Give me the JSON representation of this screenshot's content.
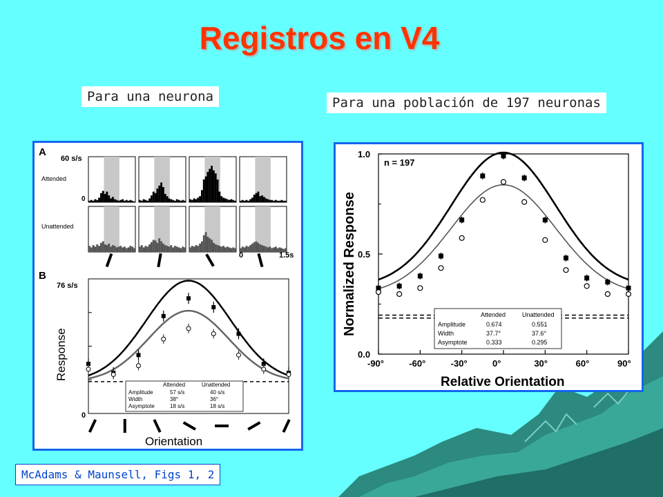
{
  "slide": {
    "title": "Registros en V4",
    "label_single": "Para una neurona",
    "label_population": "Para una población de 197 neuronas",
    "citation": "McAdams & Maunsell, Figs 1, 2",
    "colors": {
      "background": "#66ffff",
      "title": "#ff3300",
      "panel_border": "#1166ee",
      "citation_text": "#0044cc"
    }
  },
  "chart_data": [
    {
      "type": "histogram",
      "panel": "A",
      "rows": [
        "Attended",
        "Unattended"
      ],
      "y_tick_top": "60 s/s",
      "y_tick_bottom": "0",
      "x_tick_start": "0",
      "x_tick_end": "1.5s",
      "attended": [
        [
          2,
          3,
          2,
          4,
          3,
          6,
          12,
          15,
          11,
          14,
          9,
          5,
          7,
          4,
          3,
          2,
          3,
          4,
          2,
          3,
          2,
          3,
          2,
          1
        ],
        [
          3,
          2,
          4,
          3,
          2,
          5,
          9,
          14,
          12,
          18,
          22,
          26,
          20,
          11,
          8,
          5,
          4,
          3,
          2,
          4,
          3,
          2,
          3,
          2
        ],
        [
          4,
          3,
          5,
          4,
          6,
          8,
          16,
          30,
          34,
          40,
          44,
          48,
          42,
          38,
          30,
          14,
          8,
          6,
          5,
          4,
          3,
          4,
          3,
          2
        ],
        [
          2,
          3,
          2,
          3,
          2,
          4,
          6,
          10,
          12,
          14,
          8,
          9,
          7,
          5,
          4,
          3,
          3,
          2,
          3,
          2,
          2,
          3,
          2,
          2
        ]
      ],
      "unattended": [
        [
          8,
          6,
          9,
          7,
          10,
          8,
          12,
          14,
          10,
          9,
          11,
          7,
          9,
          8,
          6,
          7,
          8,
          6,
          7,
          5,
          6,
          8,
          7,
          5
        ],
        [
          7,
          9,
          6,
          8,
          7,
          10,
          13,
          16,
          15,
          12,
          18,
          14,
          11,
          9,
          8,
          7,
          9,
          6,
          8,
          7,
          6,
          5,
          7,
          6
        ],
        [
          6,
          8,
          7,
          9,
          8,
          11,
          14,
          22,
          26,
          20,
          18,
          16,
          12,
          10,
          9,
          8,
          7,
          8,
          6,
          7,
          6,
          5,
          6,
          5
        ],
        [
          5,
          7,
          6,
          8,
          7,
          9,
          11,
          13,
          14,
          12,
          10,
          9,
          8,
          7,
          6,
          7,
          5,
          6,
          7,
          5,
          6,
          5,
          4,
          5
        ]
      ]
    },
    {
      "type": "line",
      "panel": "B",
      "ylabel": "Response",
      "xlabel": "Orientation",
      "y_tick_top": "76 s/s",
      "y_tick_bottom": "0",
      "ylim": [
        0,
        76
      ],
      "x": [
        -90,
        -67.5,
        -45,
        -22.5,
        0,
        22.5,
        45,
        67.5,
        90
      ],
      "series": [
        {
          "name": "Attended",
          "values": [
            28,
            23,
            33,
            55,
            65,
            60,
            45,
            28,
            23
          ]
        },
        {
          "name": "Unattended",
          "values": [
            25,
            22,
            27,
            42,
            48,
            45,
            33,
            25,
            22
          ]
        }
      ],
      "fit_params": {
        "Attended": {
          "amplitude": 57,
          "width": 38,
          "asymptote": 18
        },
        "Unattended": {
          "amplitude": 40,
          "width": 36,
          "asymptote": 18
        }
      },
      "table": {
        "headers": [
          "Attended",
          "Unattended"
        ],
        "rows": [
          {
            "label": "Amplitude",
            "attended": "57 s/s",
            "unattended": "40 s/s"
          },
          {
            "label": "Width",
            "attended": "38°",
            "unattended": "36°"
          },
          {
            "label": "Asymptote",
            "attended": "18 s/s",
            "unattended": "18 s/s"
          }
        ]
      }
    },
    {
      "type": "line",
      "panel": "population",
      "annotation": "n = 197",
      "ylabel": "Normalized Response",
      "xlabel": "Relative Orientation",
      "ylim": [
        0,
        1.0
      ],
      "y_ticks": [
        "0.0",
        "0.5",
        "1.0"
      ],
      "x_ticks": [
        "-90°",
        "-60°",
        "-30°",
        "0°",
        "30°",
        "60°",
        "90°"
      ],
      "x": [
        -90,
        -75,
        -60,
        -45,
        -30,
        -15,
        0,
        15,
        30,
        45,
        60,
        75,
        90
      ],
      "series": [
        {
          "name": "Attended",
          "values": [
            0.33,
            0.34,
            0.39,
            0.49,
            0.67,
            0.89,
            0.99,
            0.88,
            0.67,
            0.48,
            0.38,
            0.36,
            0.33
          ]
        },
        {
          "name": "Unattended",
          "values": [
            0.31,
            0.3,
            0.33,
            0.43,
            0.58,
            0.77,
            0.86,
            0.76,
            0.57,
            0.42,
            0.34,
            0.3,
            0.3
          ]
        }
      ],
      "fit_params": {
        "Attended": {
          "amplitude": 0.674,
          "width": 37.7,
          "asymptote": 0.333
        },
        "Unattended": {
          "amplitude": 0.551,
          "width": 37.6,
          "asymptote": 0.295
        }
      },
      "table": {
        "headers": [
          "Attended",
          "Unattended"
        ],
        "rows": [
          {
            "label": "Amplitude",
            "attended": "0.674",
            "unattended": "0.551"
          },
          {
            "label": "Width",
            "attended": "37.7°",
            "unattended": "37.6°"
          },
          {
            "label": "Asymptote",
            "attended": "0.333",
            "unattended": "0.295"
          }
        ]
      }
    }
  ]
}
